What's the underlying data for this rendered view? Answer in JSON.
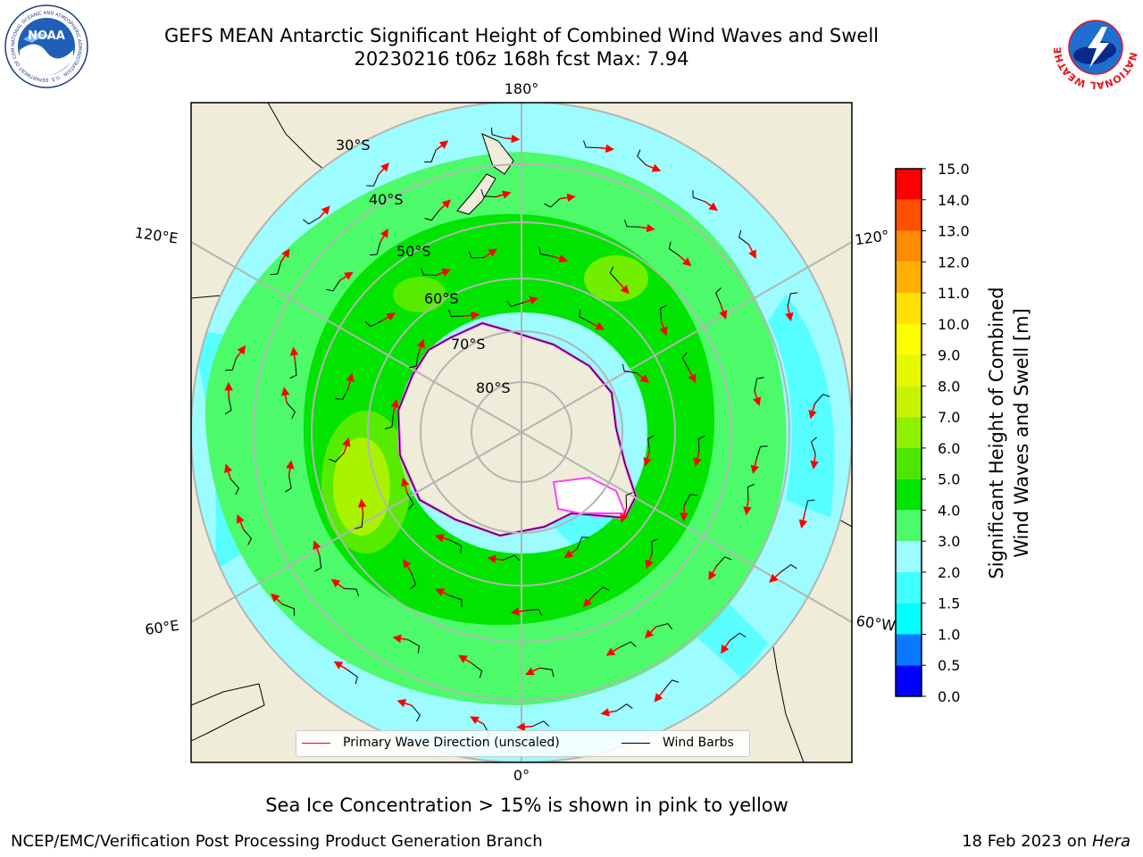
{
  "title": {
    "line1": "GEFS MEAN Antarctic Significant Height of Combined Wind Waves and Swell",
    "line2": "20230216 t06z 168h fcst   Max: 7.94"
  },
  "logos": {
    "left": {
      "text": "NOAA",
      "arc_text": "NATIONAL OCEANIC AND ATMOSPHERIC ADMINISTRATION · U.S. DEPARTMENT OF COMMERCE"
    },
    "right": {
      "arc_text": "NATIONAL WEATHER SERVICE"
    }
  },
  "map": {
    "projection": "south polar stereographic",
    "latitude_labels": [
      "30°S",
      "40°S",
      "50°S",
      "60°S",
      "70°S",
      "80°S"
    ],
    "longitude_labels": {
      "top": "180°",
      "bottom": "0°",
      "upper_left": "120°E",
      "lower_left": "60°E",
      "upper_right": "120°",
      "lower_right": "60°W"
    },
    "max_value": 7.94
  },
  "legend": {
    "wave_direction": "Primary Wave Direction (unscaled)",
    "wind_barbs": "Wind Barbs",
    "wave_color": "#ff0000",
    "barb_color": "#000000"
  },
  "colorbar": {
    "label_line1": "Significant Height of Combined",
    "label_line2": "Wind Waves and Swell [m]",
    "ticks": [
      "0.0",
      "0.5",
      "1.0",
      "1.5",
      "2.0",
      "3.0",
      "4.0",
      "5.0",
      "6.0",
      "7.0",
      "8.0",
      "9.0",
      "10.0",
      "11.0",
      "12.0",
      "13.0",
      "14.0",
      "15.0"
    ],
    "colors": [
      "#0000ff",
      "#0a78ff",
      "#00ffff",
      "#40ffff",
      "#9cfcff",
      "#4dfa6a",
      "#00e400",
      "#4de600",
      "#8ff000",
      "#c6f400",
      "#e6f800",
      "#ffff00",
      "#ffe000",
      "#ffb000",
      "#ff8c00",
      "#ff5000",
      "#ff0000"
    ]
  },
  "colors": {
    "land": "#efedd9",
    "ocean_light": "#9cfcff",
    "ocean_cyan": "#40ffff",
    "green_light": "#4dfa6a",
    "green": "#00e400",
    "green_yellow": "#8ff000",
    "yellow_green": "#d0f400",
    "sea_ice": "#ff40ff",
    "grid": "#b4b4b4"
  },
  "notes": {
    "ice": "Sea Ice Concentration > 15% is shown in pink to yellow"
  },
  "footer": {
    "left": "NCEP/EMC/Verification Post Processing Product Generation Branch",
    "right_date": "18 Feb 2023 on ",
    "right_machine": "Hera"
  }
}
